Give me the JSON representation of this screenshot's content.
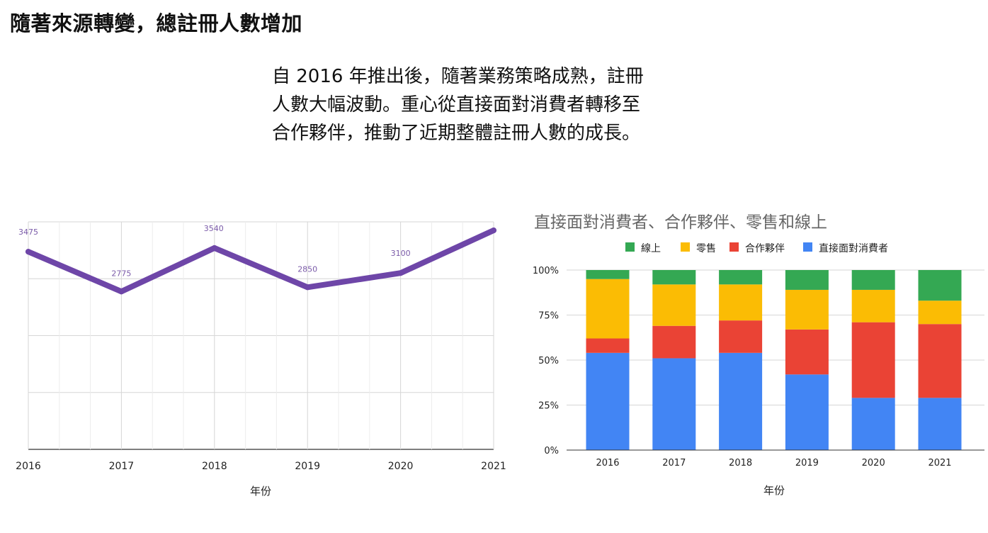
{
  "title": "隨著來源轉變，總註冊人數增加",
  "intro_lines": [
    "自 2016 年推出後，隨著業務策略成熟，註冊",
    "人數大幅波動。重心從直接面對消費者轉移至",
    "合作夥伴，推動了近期整體註冊人數的成長。"
  ],
  "colors": {
    "line": "#6e46a8",
    "direct": "#4285f4",
    "partner": "#ea4335",
    "retail": "#fbbc04",
    "online": "#34a853"
  },
  "chart_data": [
    {
      "type": "line",
      "x": [
        "2016",
        "2017",
        "2018",
        "2019",
        "2020",
        "2021"
      ],
      "series": [
        {
          "values": [
            3475,
            2775,
            3540,
            2850,
            3100,
            3850
          ]
        }
      ],
      "data_labels": [
        "3475",
        "2775",
        "3540",
        "2850",
        "3100"
      ],
      "xlabel": "年份",
      "ylabel": "",
      "title": "",
      "grid": true,
      "ylim": [
        0,
        4000
      ]
    },
    {
      "type": "bar",
      "stacked_percent": true,
      "title": "直接面對消費者、合作夥伴、零售和線上",
      "categories": [
        "2016",
        "2017",
        "2018",
        "2019",
        "2020",
        "2021"
      ],
      "series": [
        {
          "name": "直接面對消費者",
          "color_key": "direct",
          "values": [
            54,
            51,
            54,
            42,
            29,
            29
          ]
        },
        {
          "name": "合作夥伴",
          "color_key": "partner",
          "values": [
            8,
            18,
            18,
            25,
            42,
            41
          ]
        },
        {
          "name": "零售",
          "color_key": "retail",
          "values": [
            33,
            23,
            20,
            22,
            18,
            13
          ]
        },
        {
          "name": "線上",
          "color_key": "online",
          "values": [
            5,
            8,
            8,
            11,
            11,
            17
          ]
        }
      ],
      "legend_order": [
        "線上",
        "零售",
        "合作夥伴",
        "直接面對消費者"
      ],
      "legend_position": "top",
      "yticks": [
        "0%",
        "25%",
        "50%",
        "75%",
        "100%"
      ],
      "xlabel": "年份",
      "ylim": [
        0,
        100
      ],
      "grid": true
    }
  ]
}
